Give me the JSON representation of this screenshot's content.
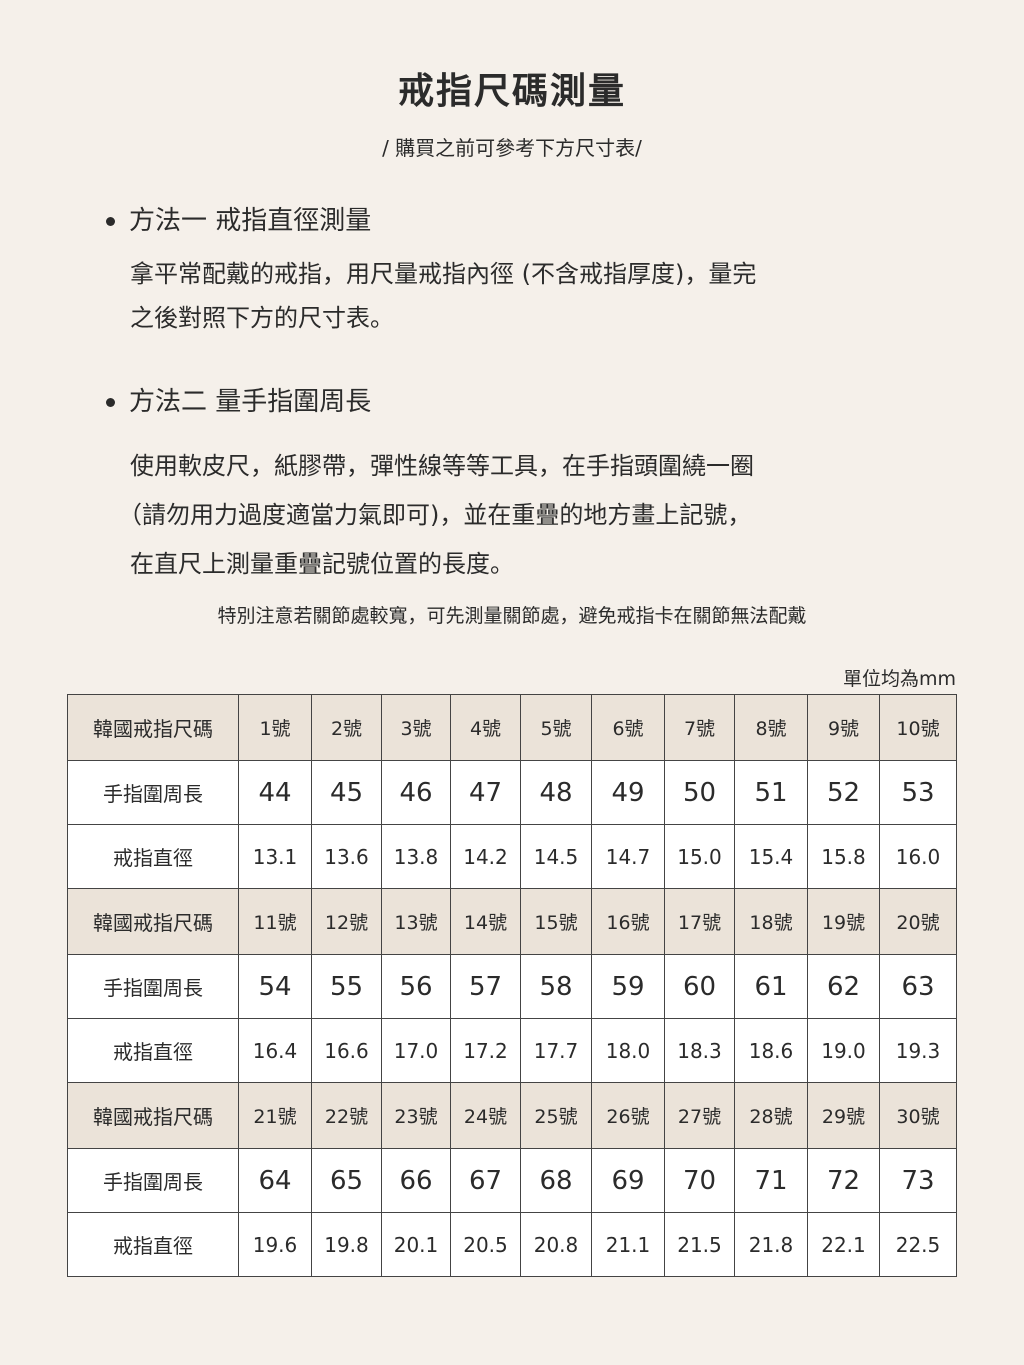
{
  "title": "戒指尺碼測量",
  "subtitle": "/ 購買之前可參考下方尺寸表/",
  "method1": {
    "heading": "方法一  戒指直徑測量",
    "lines": [
      "拿平常配戴的戒指，用尺量戒指內徑 (不含戒指厚度)，量完",
      "之後對照下方的尺寸表。"
    ]
  },
  "method2": {
    "heading": "方法二  量手指圍周長",
    "lines": [
      "使用軟皮尺，紙膠帶，彈性線等等工具，在手指頭圍繞一圈",
      "（請勿用力過度適當力氣即可)，並在重疊的地方畫上記號，",
      "在直尺上測量重疊記號位置的長度。"
    ]
  },
  "note": "特別注意若關節處較寬，可先測量關節處，避免戒指卡在關節無法配戴",
  "unit": "單位均為mm",
  "table": {
    "labels": {
      "size": "韓國戒指尺碼",
      "circumference": "手指圍周長",
      "diameter": "戒指直徑"
    },
    "blocks": [
      {
        "sizes": [
          "1號",
          "2號",
          "3號",
          "4號",
          "5號",
          "6號",
          "7號",
          "8號",
          "9號",
          "10號"
        ],
        "circ": [
          "44",
          "45",
          "46",
          "47",
          "48",
          "49",
          "50",
          "51",
          "52",
          "53"
        ],
        "diam": [
          "13.1",
          "13.6",
          "13.8",
          "14.2",
          "14.5",
          "14.7",
          "15.0",
          "15.4",
          "15.8",
          "16.0"
        ]
      },
      {
        "sizes": [
          "11號",
          "12號",
          "13號",
          "14號",
          "15號",
          "16號",
          "17號",
          "18號",
          "19號",
          "20號"
        ],
        "circ": [
          "54",
          "55",
          "56",
          "57",
          "58",
          "59",
          "60",
          "61",
          "62",
          "63"
        ],
        "diam": [
          "16.4",
          "16.6",
          "17.0",
          "17.2",
          "17.7",
          "18.0",
          "18.3",
          "18.6",
          "19.0",
          "19.3"
        ]
      },
      {
        "sizes": [
          "21號",
          "22號",
          "23號",
          "24號",
          "25號",
          "26號",
          "27號",
          "28號",
          "29號",
          "30號"
        ],
        "circ": [
          "64",
          "65",
          "66",
          "67",
          "68",
          "69",
          "70",
          "71",
          "72",
          "73"
        ],
        "diam": [
          "19.6",
          "19.8",
          "20.1",
          "20.5",
          "20.8",
          "21.1",
          "21.5",
          "21.8",
          "22.1",
          "22.5"
        ]
      }
    ]
  },
  "colors": {
    "background": "#f5f0ea",
    "header_cell": "#ebe3d9",
    "border": "#444444"
  }
}
